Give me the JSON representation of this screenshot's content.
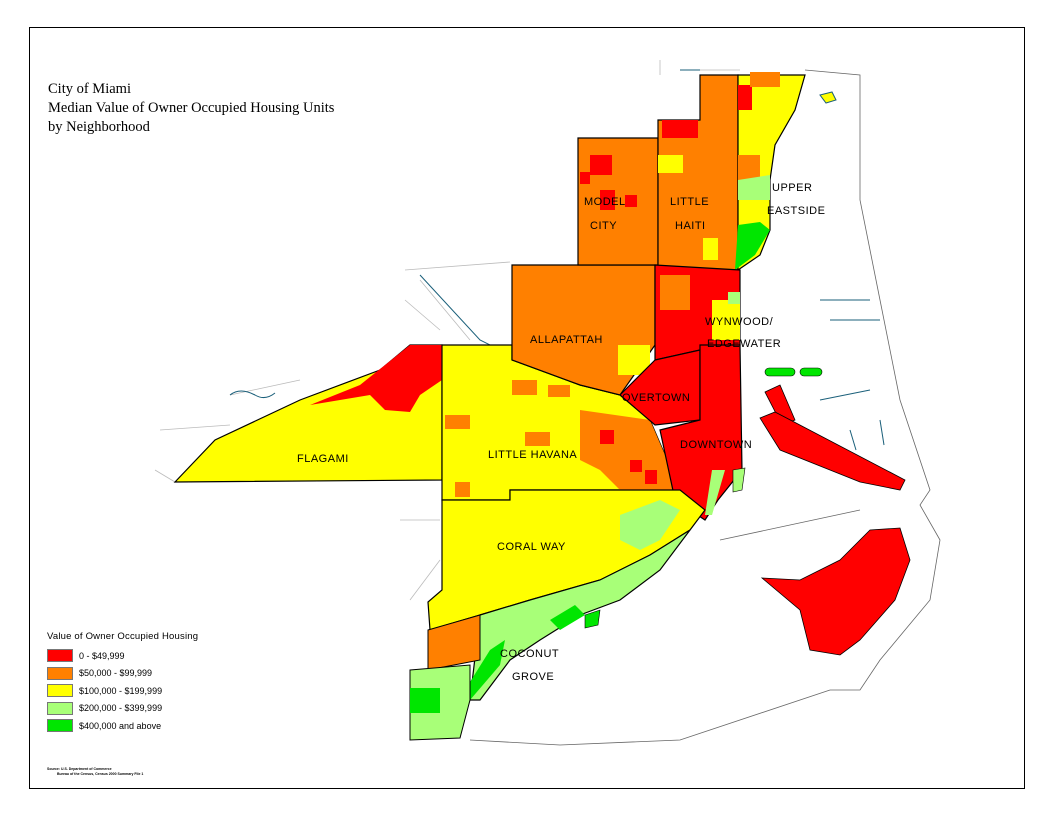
{
  "title": {
    "line1": "City of Miami",
    "line2": "Median Value of Owner Occupied Housing Units",
    "line3": "by Neighborhood"
  },
  "colors": {
    "class1": "#ff0000",
    "class2": "#ff8000",
    "class3": "#ffff00",
    "class4": "#a8ff78",
    "class5": "#00e600",
    "water": "#1a5f7a",
    "boundary": "#000000"
  },
  "legend": {
    "title": "Value of Owner Occupied Housing",
    "items": [
      {
        "label": "0 - $49,999",
        "color": "#ff0000"
      },
      {
        "label": "$50,000 - $99,999",
        "color": "#ff8000"
      },
      {
        "label": "$100,000 - $199,999",
        "color": "#ffff00"
      },
      {
        "label": "$200,000 - $399,999",
        "color": "#a8ff78"
      },
      {
        "label": "$400,000 and above",
        "color": "#00e600"
      }
    ]
  },
  "neighborhoods": {
    "model_city_1": "MODEL",
    "model_city_2": "CITY",
    "little_haiti_1": "LITTLE",
    "little_haiti_2": "HAITI",
    "upper_eastside_1": "UPPER",
    "upper_eastside_2": "EASTSIDE",
    "allapattah": "ALLAPATTAH",
    "wynwood_1": "WYNWOOD/",
    "wynwood_2": "EDGEWATER",
    "overtown": "OVERTOWN",
    "downtown": "DOWNTOWN",
    "flagami": "FLAGAMI",
    "little_havana": "LITTLE HAVANA",
    "coral_way": "CORAL WAY",
    "coconut_grove_1": "COCONUT",
    "coconut_grove_2": "GROVE"
  },
  "source": {
    "line1": "Source: U.S. Department of Commerce",
    "line2": "Bureau of the Census, Census 2000 Summary File 1"
  }
}
